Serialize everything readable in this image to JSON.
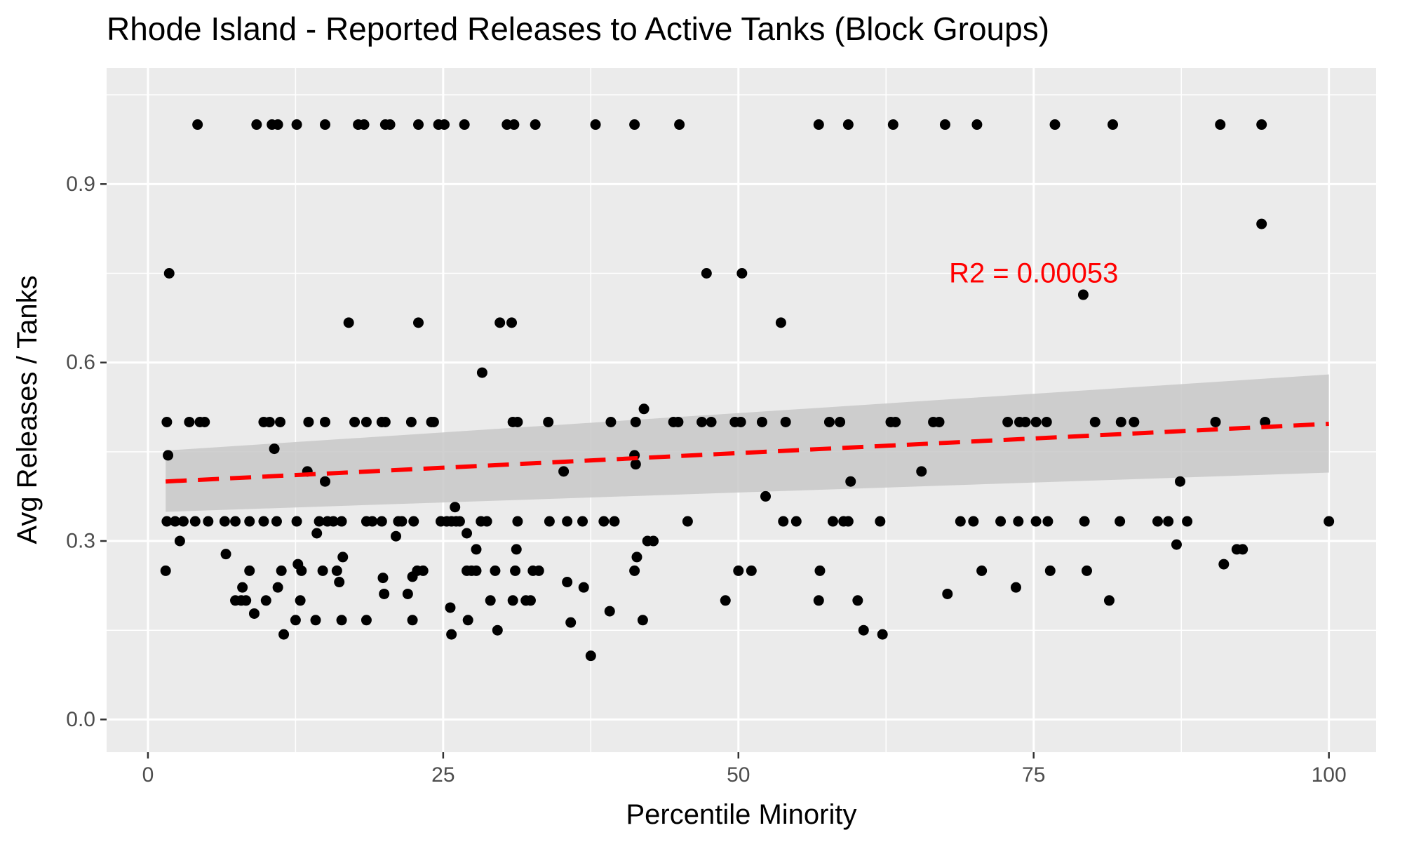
{
  "chart_data": {
    "type": "scatter",
    "title": "Rhode Island - Reported Releases to Active Tanks (Block Groups)",
    "xlabel": "Percentile Minority",
    "ylabel": "Avg Releases / Tanks",
    "xlim": [
      -3.5,
      104
    ],
    "ylim": [
      -0.055,
      1.095
    ],
    "x_ticks": [
      0,
      25,
      50,
      75,
      100
    ],
    "x_tick_labels": [
      "0",
      "25",
      "50",
      "75",
      "100"
    ],
    "y_ticks": [
      0.0,
      0.3,
      0.6,
      0.9
    ],
    "y_tick_labels": [
      "0.0",
      "0.3",
      "0.6",
      "0.9"
    ],
    "grid": true,
    "legend": "none",
    "colors": {
      "panel": "#ebebeb",
      "grid": "#ffffff",
      "points": "#000000",
      "fit_line": "#ff0000",
      "confidence_band": "#c8c8c8",
      "annotation": "#ff0000"
    },
    "annotation": {
      "text": "R2 =  0.00053",
      "x": 75,
      "y": 0.75
    },
    "trend": {
      "style": "dashed",
      "x": [
        1.5,
        100
      ],
      "y": [
        0.4,
        0.497
      ],
      "ci_upper": [
        0.452,
        0.58
      ],
      "ci_lower": [
        0.349,
        0.415
      ]
    },
    "series": [
      {
        "points": [
          [
            4.2,
            1.0
          ],
          [
            9.2,
            1.0
          ],
          [
            10.5,
            1.0
          ],
          [
            11.0,
            1.0
          ],
          [
            12.6,
            1.0
          ],
          [
            15.0,
            1.0
          ],
          [
            17.8,
            1.0
          ],
          [
            18.3,
            1.0
          ],
          [
            20.1,
            1.0
          ],
          [
            20.5,
            1.0
          ],
          [
            22.9,
            1.0
          ],
          [
            24.6,
            1.0
          ],
          [
            25.1,
            1.0
          ],
          [
            26.8,
            1.0
          ],
          [
            30.4,
            1.0
          ],
          [
            31.0,
            1.0
          ],
          [
            32.8,
            1.0
          ],
          [
            37.9,
            1.0
          ],
          [
            41.2,
            1.0
          ],
          [
            45.0,
            1.0
          ],
          [
            56.8,
            1.0
          ],
          [
            59.3,
            1.0
          ],
          [
            63.1,
            1.0
          ],
          [
            67.5,
            1.0
          ],
          [
            70.2,
            1.0
          ],
          [
            76.8,
            1.0
          ],
          [
            81.7,
            1.0
          ],
          [
            90.8,
            1.0
          ],
          [
            94.3,
            1.0
          ],
          [
            94.3,
            0.833
          ],
          [
            79.2,
            0.714
          ],
          [
            1.8,
            0.75
          ],
          [
            47.3,
            0.75
          ],
          [
            50.3,
            0.75
          ],
          [
            17.0,
            0.667
          ],
          [
            22.9,
            0.667
          ],
          [
            29.8,
            0.667
          ],
          [
            30.8,
            0.667
          ],
          [
            53.6,
            0.667
          ],
          [
            28.3,
            0.583
          ],
          [
            1.6,
            0.5
          ],
          [
            3.5,
            0.5
          ],
          [
            4.4,
            0.5
          ],
          [
            4.8,
            0.5
          ],
          [
            9.8,
            0.5
          ],
          [
            10.3,
            0.5
          ],
          [
            11.2,
            0.5
          ],
          [
            13.6,
            0.5
          ],
          [
            15.0,
            0.5
          ],
          [
            17.5,
            0.5
          ],
          [
            18.5,
            0.5
          ],
          [
            19.8,
            0.5
          ],
          [
            20.1,
            0.5
          ],
          [
            22.3,
            0.5
          ],
          [
            24.0,
            0.5
          ],
          [
            24.2,
            0.5
          ],
          [
            30.9,
            0.5
          ],
          [
            31.3,
            0.5
          ],
          [
            33.9,
            0.5
          ],
          [
            39.2,
            0.5
          ],
          [
            41.3,
            0.5
          ],
          [
            44.5,
            0.5
          ],
          [
            44.9,
            0.5
          ],
          [
            46.9,
            0.5
          ],
          [
            47.7,
            0.5
          ],
          [
            49.7,
            0.5
          ],
          [
            50.2,
            0.5
          ],
          [
            52.0,
            0.5
          ],
          [
            54.0,
            0.5
          ],
          [
            57.7,
            0.5
          ],
          [
            58.6,
            0.5
          ],
          [
            62.9,
            0.5
          ],
          [
            63.3,
            0.5
          ],
          [
            66.5,
            0.5
          ],
          [
            67.0,
            0.5
          ],
          [
            72.8,
            0.5
          ],
          [
            73.8,
            0.5
          ],
          [
            74.3,
            0.5
          ],
          [
            75.2,
            0.5
          ],
          [
            76.1,
            0.5
          ],
          [
            80.2,
            0.5
          ],
          [
            82.4,
            0.5
          ],
          [
            83.5,
            0.5
          ],
          [
            90.4,
            0.5
          ],
          [
            94.6,
            0.5
          ],
          [
            42.0,
            0.522
          ],
          [
            10.7,
            0.455
          ],
          [
            1.7,
            0.444
          ],
          [
            41.2,
            0.444
          ],
          [
            41.3,
            0.429
          ],
          [
            13.5,
            0.417
          ],
          [
            35.2,
            0.417
          ],
          [
            65.5,
            0.417
          ],
          [
            15.0,
            0.4
          ],
          [
            59.5,
            0.4
          ],
          [
            87.4,
            0.4
          ],
          [
            52.3,
            0.375
          ],
          [
            26.0,
            0.357
          ],
          [
            1.6,
            0.333
          ],
          [
            2.3,
            0.333
          ],
          [
            3.0,
            0.333
          ],
          [
            4.0,
            0.333
          ],
          [
            5.1,
            0.333
          ],
          [
            6.5,
            0.333
          ],
          [
            7.4,
            0.333
          ],
          [
            8.6,
            0.333
          ],
          [
            9.8,
            0.333
          ],
          [
            10.9,
            0.333
          ],
          [
            12.6,
            0.333
          ],
          [
            14.5,
            0.333
          ],
          [
            15.2,
            0.333
          ],
          [
            15.7,
            0.333
          ],
          [
            16.4,
            0.333
          ],
          [
            18.5,
            0.333
          ],
          [
            19.0,
            0.333
          ],
          [
            19.8,
            0.333
          ],
          [
            21.2,
            0.333
          ],
          [
            21.5,
            0.333
          ],
          [
            22.5,
            0.333
          ],
          [
            24.8,
            0.333
          ],
          [
            25.3,
            0.333
          ],
          [
            25.7,
            0.333
          ],
          [
            26.1,
            0.333
          ],
          [
            26.4,
            0.333
          ],
          [
            28.2,
            0.333
          ],
          [
            28.7,
            0.333
          ],
          [
            31.3,
            0.333
          ],
          [
            34.0,
            0.333
          ],
          [
            35.5,
            0.333
          ],
          [
            36.8,
            0.333
          ],
          [
            38.6,
            0.333
          ],
          [
            39.5,
            0.333
          ],
          [
            45.7,
            0.333
          ],
          [
            53.8,
            0.333
          ],
          [
            54.9,
            0.333
          ],
          [
            58.0,
            0.333
          ],
          [
            58.9,
            0.333
          ],
          [
            59.3,
            0.333
          ],
          [
            62.0,
            0.333
          ],
          [
            68.8,
            0.333
          ],
          [
            69.9,
            0.333
          ],
          [
            72.2,
            0.333
          ],
          [
            73.7,
            0.333
          ],
          [
            75.2,
            0.333
          ],
          [
            76.2,
            0.333
          ],
          [
            79.3,
            0.333
          ],
          [
            82.3,
            0.333
          ],
          [
            85.5,
            0.333
          ],
          [
            86.4,
            0.333
          ],
          [
            88.0,
            0.333
          ],
          [
            100.0,
            0.333
          ],
          [
            14.3,
            0.313
          ],
          [
            21.0,
            0.308
          ],
          [
            27.0,
            0.313
          ],
          [
            2.7,
            0.3
          ],
          [
            42.3,
            0.3
          ],
          [
            42.8,
            0.3
          ],
          [
            87.1,
            0.294
          ],
          [
            27.8,
            0.286
          ],
          [
            31.2,
            0.286
          ],
          [
            92.2,
            0.286
          ],
          [
            92.7,
            0.286
          ],
          [
            6.6,
            0.278
          ],
          [
            16.5,
            0.273
          ],
          [
            41.4,
            0.273
          ],
          [
            12.7,
            0.261
          ],
          [
            91.1,
            0.261
          ],
          [
            1.5,
            0.25
          ],
          [
            8.6,
            0.25
          ],
          [
            11.3,
            0.25
          ],
          [
            13.0,
            0.25
          ],
          [
            14.8,
            0.25
          ],
          [
            16.0,
            0.25
          ],
          [
            22.8,
            0.25
          ],
          [
            23.3,
            0.25
          ],
          [
            27.0,
            0.25
          ],
          [
            27.4,
            0.25
          ],
          [
            27.8,
            0.25
          ],
          [
            29.4,
            0.25
          ],
          [
            31.1,
            0.25
          ],
          [
            32.6,
            0.25
          ],
          [
            33.1,
            0.25
          ],
          [
            41.2,
            0.25
          ],
          [
            50.0,
            0.25
          ],
          [
            51.1,
            0.25
          ],
          [
            56.9,
            0.25
          ],
          [
            70.6,
            0.25
          ],
          [
            76.4,
            0.25
          ],
          [
            79.5,
            0.25
          ],
          [
            19.9,
            0.238
          ],
          [
            16.2,
            0.231
          ],
          [
            35.5,
            0.231
          ],
          [
            8.0,
            0.222
          ],
          [
            11.0,
            0.222
          ],
          [
            22.4,
            0.24
          ],
          [
            36.9,
            0.222
          ],
          [
            73.5,
            0.222
          ],
          [
            20.0,
            0.211
          ],
          [
            22.0,
            0.211
          ],
          [
            67.7,
            0.211
          ],
          [
            7.4,
            0.2
          ],
          [
            7.9,
            0.2
          ],
          [
            8.3,
            0.2
          ],
          [
            10.0,
            0.2
          ],
          [
            12.9,
            0.2
          ],
          [
            29.0,
            0.2
          ],
          [
            30.9,
            0.2
          ],
          [
            32.0,
            0.2
          ],
          [
            32.4,
            0.2
          ],
          [
            48.9,
            0.2
          ],
          [
            56.8,
            0.2
          ],
          [
            60.1,
            0.2
          ],
          [
            81.4,
            0.2
          ],
          [
            25.6,
            0.188
          ],
          [
            39.1,
            0.182
          ],
          [
            9.0,
            0.178
          ],
          [
            12.5,
            0.167
          ],
          [
            14.2,
            0.167
          ],
          [
            16.4,
            0.167
          ],
          [
            18.5,
            0.167
          ],
          [
            22.4,
            0.167
          ],
          [
            27.1,
            0.167
          ],
          [
            35.8,
            0.163
          ],
          [
            41.9,
            0.167
          ],
          [
            29.6,
            0.15
          ],
          [
            60.6,
            0.15
          ],
          [
            11.5,
            0.143
          ],
          [
            25.7,
            0.143
          ],
          [
            62.2,
            0.143
          ],
          [
            37.5,
            0.107
          ]
        ]
      }
    ]
  }
}
